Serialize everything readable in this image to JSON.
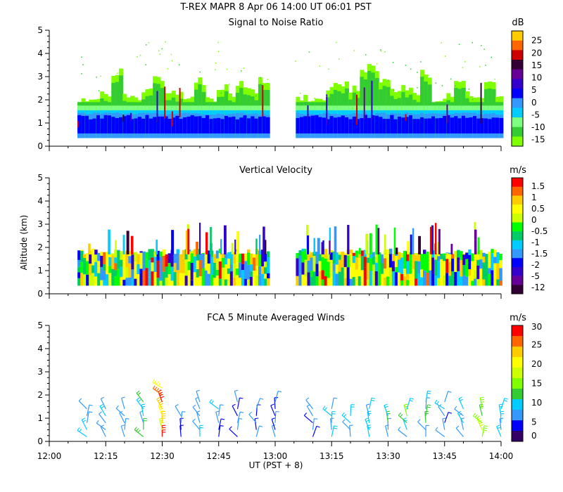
{
  "header": {
    "line1": "T-REX   MAPR   8 Apr 06   14:00 UT   06:01   PST"
  },
  "x_axis": {
    "label": "UT  (PST + 8)",
    "ticks": [
      "12:00",
      "12:15",
      "12:30",
      "12:45",
      "13:00",
      "13:15",
      "13:30",
      "13:45",
      "14:00"
    ]
  },
  "y_axis": {
    "label": "Altitude (km)",
    "ticks": [
      "0",
      "1",
      "2",
      "3",
      "4",
      "5"
    ]
  },
  "colors": {
    "snr": [
      "#7fff00",
      "#33cc33",
      "#7fff7f",
      "#00ccff",
      "#3399ff",
      "#0000ff",
      "#3300cc",
      "#660099",
      "#330033",
      "#cc0000",
      "#ff6600",
      "#ffcc00"
    ],
    "vv": [
      "#330033",
      "#660099",
      "#3300cc",
      "#0000ff",
      "#3399ff",
      "#00ccff",
      "#00cc66",
      "#00ff00",
      "#ccff00",
      "#ffff00",
      "#ffcc00",
      "#ff6600",
      "#ff0000"
    ],
    "wind": [
      "#330066",
      "#0000ff",
      "#3399ff",
      "#00ccff",
      "#33cc33",
      "#7fff00",
      "#ccff00",
      "#ffff00",
      "#ffcc00",
      "#ff6600",
      "#ff0000"
    ]
  },
  "chart_data": [
    {
      "type": "heatmap",
      "id": "snr",
      "title": "Signal to Noise Ratio",
      "unit": "dB",
      "xlabel": "UT  (PST + 8)",
      "ylabel": "Altitude (km)",
      "xlim": [
        0,
        120
      ],
      "ylim": [
        0,
        5
      ],
      "colorbar_ticks": [
        "25",
        "20",
        "15",
        "10",
        "5",
        "0",
        "-5",
        "-10",
        "-15"
      ],
      "data_gaps_minutes": [
        [
          0,
          7
        ],
        [
          59,
          65
        ]
      ],
      "echo_top_km": [
        2.2,
        2.3,
        2.5,
        3.5,
        2.4,
        2.3,
        2.6,
        3.3,
        2.4,
        2.6,
        2.3,
        3.1,
        2.2,
        2.7,
        2.4,
        2.9,
        2.6,
        3.1,
        2.3,
        2.2,
        2.1,
        2.8,
        3.0,
        2.7,
        3.3,
        3.6,
        3.0,
        2.6,
        2.8,
        2.4,
        3.3,
        2.2,
        2.4,
        3.0,
        2.5,
        2.3,
        3.2,
        2.5,
        3.1
      ]
    },
    {
      "type": "heatmap",
      "id": "vv",
      "title": "Vertical Velocity",
      "unit": "m/s",
      "xlabel": "UT  (PST + 8)",
      "ylabel": "Altitude (km)",
      "xlim": [
        0,
        120
      ],
      "ylim": [
        0,
        5
      ],
      "colorbar_ticks": [
        "1.5",
        "1",
        "0.5",
        "0",
        "-0.5",
        "-1",
        "-1.5",
        "-2",
        "-5",
        "-12"
      ],
      "data_gaps_minutes": [
        [
          0,
          7
        ],
        [
          59,
          65
        ]
      ],
      "plume_tops_km": [
        2.9,
        3.4,
        2.5,
        2.8,
        3.0,
        2.3,
        2.4,
        3.2,
        2.8,
        2.4,
        3.1,
        3.6,
        3.0,
        2.7,
        3.1,
        2.5,
        2.9,
        2.4,
        3.0
      ]
    },
    {
      "type": "barbs",
      "id": "wind",
      "title": "FCA 5 Minute Averaged Winds",
      "unit": "m/s",
      "xlabel": "UT  (PST + 8)",
      "ylabel": "Altitude (km)",
      "xlim": [
        0,
        120
      ],
      "ylim": [
        0,
        5
      ],
      "colorbar_ticks": [
        "30",
        "25",
        "20",
        "15",
        "10",
        "5",
        "0"
      ],
      "x_minutes": [
        10,
        15,
        20,
        25,
        30,
        35,
        40,
        45,
        50,
        55,
        60,
        70,
        75,
        80,
        85,
        90,
        95,
        100,
        105,
        110,
        115,
        120
      ],
      "levels_km": [
        0.2,
        0.5,
        0.8,
        1.1,
        1.4,
        1.7,
        2.0,
        2.3
      ],
      "top_km": [
        1.5,
        1.4,
        1.4,
        1.8,
        2.3,
        1.2,
        1.9,
        1.6,
        1.7,
        1.6,
        1.7,
        1.5,
        1.4,
        1.3,
        1.4,
        1.3,
        1.6,
        1.8,
        1.7,
        1.6,
        1.5,
        1.4
      ],
      "speed_ms": [
        8,
        7,
        6,
        10,
        26,
        6,
        7,
        6,
        5,
        5,
        5,
        6,
        8,
        7,
        9,
        10,
        11,
        9,
        6,
        7,
        14,
        8
      ]
    }
  ]
}
